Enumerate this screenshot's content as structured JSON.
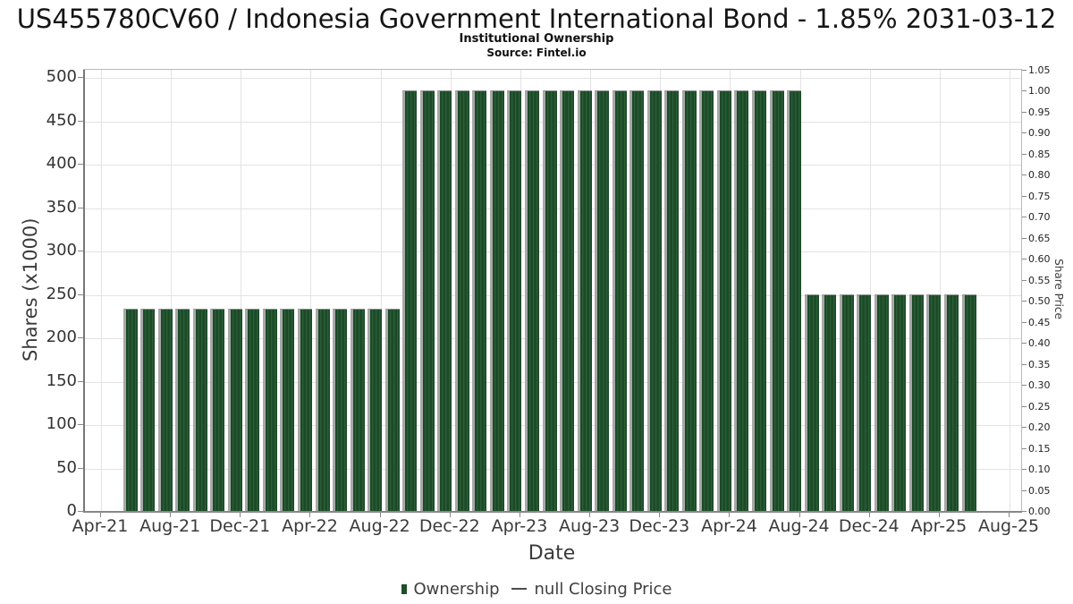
{
  "header": {
    "title": "US455780CV60 / Indonesia Government International Bond - 1.85% 2031-03-12",
    "subtitle": "Institutional Ownership",
    "source": "Source: Fintel.io"
  },
  "legend": {
    "ownership_label": "Ownership",
    "closing_price_label": "null Closing Price"
  },
  "chart_data": {
    "type": "bar",
    "title": "US455780CV60 / Indonesia Government International Bond - 1.85% 2031-03-12",
    "subtitle": "Institutional Ownership",
    "source": "Source: Fintel.io",
    "xlabel": "Date",
    "ylabel_left": "Shares (x1000)",
    "ylabel_right": "Share Price",
    "grid": true,
    "legend_position": "bottom",
    "bar_color": "#1e4f2b",
    "x_axis_month_span": [
      "Apr-21",
      "Aug-25"
    ],
    "x_ticks": [
      "Apr-21",
      "Aug-21",
      "Dec-21",
      "Apr-22",
      "Aug-22",
      "Dec-22",
      "Apr-23",
      "Aug-23",
      "Dec-23",
      "Apr-24",
      "Aug-24",
      "Dec-24",
      "Apr-25",
      "Aug-25"
    ],
    "y_left_ticks": [
      0,
      50,
      100,
      150,
      200,
      250,
      300,
      350,
      400,
      450,
      500
    ],
    "y_left_range": [
      0,
      500
    ],
    "y_right_ticks": [
      "0.00",
      "0.05",
      "0.10",
      "0.15",
      "0.20",
      "0.25",
      "0.30",
      "0.35",
      "0.40",
      "0.45",
      "0.50",
      "0.55",
      "0.60",
      "0.65",
      "0.70",
      "0.75",
      "0.80",
      "0.85",
      "0.90",
      "0.95",
      "1.00",
      "1.05"
    ],
    "y_right_range": [
      0,
      1.05
    ],
    "start_month_offset": 2,
    "categories": [
      "Jun-21",
      "Jul-21",
      "Aug-21",
      "Sep-21",
      "Oct-21",
      "Nov-21",
      "Dec-21",
      "Jan-22",
      "Feb-22",
      "Mar-22",
      "Apr-22",
      "May-22",
      "Jun-22",
      "Jul-22",
      "Aug-22",
      "Sep-22",
      "Oct-22",
      "Nov-22",
      "Dec-22",
      "Jan-23",
      "Feb-23",
      "Mar-23",
      "Apr-23",
      "May-23",
      "Jun-23",
      "Jul-23",
      "Aug-23",
      "Sep-23",
      "Oct-23",
      "Nov-23",
      "Dec-23",
      "Jan-24",
      "Feb-24",
      "Mar-24",
      "Apr-24",
      "May-24",
      "Jun-24",
      "Jul-24",
      "Aug-24",
      "Sep-24",
      "Oct-24",
      "Nov-24",
      "Dec-24",
      "Jan-25",
      "Feb-25",
      "Mar-25",
      "Apr-25",
      "May-25",
      "Jun-25"
    ],
    "series": [
      {
        "name": "Ownership",
        "type": "bar",
        "axis": "left",
        "values": [
          234,
          234,
          234,
          234,
          234,
          234,
          234,
          234,
          234,
          234,
          234,
          234,
          234,
          234,
          234,
          234,
          486,
          486,
          486,
          486,
          486,
          486,
          486,
          486,
          486,
          486,
          486,
          486,
          486,
          486,
          486,
          486,
          486,
          486,
          486,
          486,
          486,
          486,
          486,
          250,
          250,
          250,
          250,
          250,
          250,
          250,
          250,
          250,
          250
        ]
      },
      {
        "name": "null Closing Price",
        "type": "line",
        "axis": "right",
        "values": []
      }
    ]
  }
}
